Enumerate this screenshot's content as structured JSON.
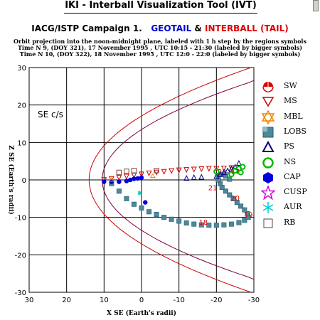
{
  "window": {
    "title": "IKI - Interball Visualization Tool (IVT)"
  },
  "header": {
    "campaign": "IACG/ISTP Campaign 1.",
    "sat1": "GEOTAIL",
    "sep": " & ",
    "sat2": "INTERBALL (TAIL)",
    "note1": "Orbit projection into the noon-midnight plane, labeled with 1 h step by the regions symbols",
    "note2": "Time N 9, (DOY 321), 17 November 1995 , UTC 10:15 - 21:30 (labeled by bigger symbols)",
    "note3": "Time N 10, (DOY 322), 18 November 1995 , UTC 12:0 - 22:0 (labeled by bigger symbols)"
  },
  "chart_data": {
    "type": "scatter",
    "frame_label": "SE c/s",
    "xlabel": "X SE (Earth's radii)",
    "ylabel": "Z SE (Earth's radii)",
    "xlim": [
      30,
      -30
    ],
    "ylim": [
      30,
      -30
    ],
    "x_ticks": [
      30,
      20,
      10,
      0,
      -10,
      -20,
      -30
    ],
    "y_ticks": [
      -30,
      -20,
      -10,
      0,
      10,
      20,
      30
    ],
    "x_tick_labels": [
      "30",
      "20",
      "10",
      "0",
      "-10",
      "-20",
      "-30"
    ],
    "y_tick_labels": [
      "-30",
      "-20",
      "-10",
      "0",
      "10",
      "20",
      "30"
    ],
    "grid": true,
    "hour_labels": [
      {
        "text": "18",
        "x": -16.5,
        "y": -12.0
      },
      {
        "text": "19",
        "x": -28.5,
        "y": -10.0
      },
      {
        "text": "20",
        "x": -25.0,
        "y": -5.5
      },
      {
        "text": "21",
        "x": -19.0,
        "y": -2.8
      },
      {
        "text": "23",
        "x": -21.5,
        "y": 1.5
      },
      {
        "text": "17",
        "x": -25.0,
        "y": 1.5
      }
    ],
    "boundaries": {
      "color": "#cc0000",
      "description": "Model magnetopause (outer) and bow shock curves"
    },
    "series": [
      {
        "name": "LOBS",
        "color": "#4a8a9a",
        "points": [
          [
            8,
            -1
          ],
          [
            6,
            -3
          ],
          [
            4,
            -5
          ],
          [
            2,
            -6.5
          ],
          [
            0,
            -7.5
          ],
          [
            -2,
            -8.5
          ],
          [
            -4,
            -9.2
          ],
          [
            -6,
            -10
          ],
          [
            -8,
            -10.5
          ],
          [
            -10,
            -11
          ],
          [
            -12,
            -11.5
          ],
          [
            -14,
            -11.8
          ],
          [
            -16,
            -12
          ],
          [
            -18,
            -12.1
          ],
          [
            -20,
            -12.1
          ],
          [
            -22,
            -12.0
          ],
          [
            -24,
            -11.8
          ],
          [
            -26,
            -11.4
          ],
          [
            -27.5,
            -10.8
          ],
          [
            -28.5,
            -10.0
          ],
          [
            -28.3,
            -9.0
          ],
          [
            -27.5,
            -8.0
          ],
          [
            -26.5,
            -7.0
          ],
          [
            -25.5,
            -6.0
          ],
          [
            -24.5,
            -5.0
          ],
          [
            -23.5,
            -4.0
          ],
          [
            -22.5,
            -3.0
          ],
          [
            -21.5,
            -2.0
          ],
          [
            -21,
            -1.0
          ],
          [
            -20.5,
            0.0
          ],
          [
            -20.5,
            1.0
          ],
          [
            -21.5,
            1.5
          ],
          [
            -22.5,
            1.0
          ],
          [
            -23.5,
            0.2
          ]
        ]
      },
      {
        "name": "MS",
        "color": "#cc0000",
        "points": [
          [
            10,
            0
          ],
          [
            8,
            0.3
          ],
          [
            6,
            0.6
          ],
          [
            4,
            0.9
          ],
          [
            2,
            1.2
          ],
          [
            0,
            1.5
          ],
          [
            -2,
            1.8
          ],
          [
            -4,
            2.0
          ],
          [
            -6,
            2.2
          ],
          [
            -8,
            2.4
          ],
          [
            -10,
            2.6
          ],
          [
            -12,
            2.7
          ],
          [
            -14,
            2.8
          ],
          [
            -16,
            2.9
          ],
          [
            -18,
            3.0
          ],
          [
            -20,
            3.0
          ],
          [
            -22,
            3.1
          ],
          [
            -24,
            3.2
          ]
        ]
      },
      {
        "name": "CAP",
        "color": "#0000dd",
        "points": [
          [
            10,
            -0.5
          ],
          [
            8,
            -0.5
          ],
          [
            6,
            -0.5
          ],
          [
            4,
            -0.3
          ],
          [
            3,
            0.0
          ],
          [
            2,
            0.3
          ],
          [
            -1,
            -6.0
          ],
          [
            1,
            0.4
          ],
          [
            0,
            0.6
          ]
        ]
      },
      {
        "name": "PS",
        "color": "#000080",
        "points": [
          [
            -20,
            1.0
          ],
          [
            -21,
            1.5
          ],
          [
            -22,
            2.0
          ],
          [
            -23,
            2.5
          ],
          [
            -24,
            3.0
          ],
          [
            -25,
            3.5
          ],
          [
            -26,
            4.5
          ],
          [
            -12,
            0.5
          ],
          [
            -14,
            0.7
          ],
          [
            -16,
            0.8
          ]
        ]
      },
      {
        "name": "NS",
        "color": "#00bb00",
        "points": [
          [
            -24,
            1.5
          ],
          [
            -25,
            2.5
          ],
          [
            -26,
            3.0
          ],
          [
            -27,
            3.5
          ],
          [
            -26.5,
            2.0
          ],
          [
            -20,
            2.2
          ]
        ]
      },
      {
        "name": "RB",
        "color": "#804040",
        "points": [
          [
            6,
            2.0
          ],
          [
            4,
            2.3
          ],
          [
            2,
            2.5
          ],
          [
            -4,
            2.5
          ]
        ]
      },
      {
        "name": "AUR",
        "color": "#00cccc",
        "points": [
          [
            0.5,
            -3.5
          ]
        ]
      },
      {
        "name": "MBL",
        "color": "#ee8800",
        "points": [
          [
            8,
            0.0
          ],
          [
            -3,
            1.0
          ]
        ]
      }
    ]
  },
  "legend": {
    "items": [
      {
        "label": "SW",
        "symbol": "sw-icon",
        "color": "#dd0000"
      },
      {
        "label": "MS",
        "symbol": "down-triangle-icon",
        "color": "#cc0000"
      },
      {
        "label": "MBL",
        "symbol": "star-of-david-icon",
        "color": "#ee8800"
      },
      {
        "label": "LOBS",
        "symbol": "lobs-square-icon",
        "color": "#4a8a9a"
      },
      {
        "label": "PS",
        "symbol": "up-triangle-icon",
        "color": "#000080"
      },
      {
        "label": "NS",
        "symbol": "ring-icon",
        "color": "#00bb00"
      },
      {
        "label": "CAP",
        "symbol": "filled-hexagon-icon",
        "color": "#0000dd"
      },
      {
        "label": "CUSP",
        "symbol": "star-icon",
        "color": "#dd00dd"
      },
      {
        "label": "AUR",
        "symbol": "asterisk-icon",
        "color": "#00cccc"
      },
      {
        "label": "RB",
        "symbol": "open-square-icon",
        "color": "#604040"
      }
    ]
  }
}
